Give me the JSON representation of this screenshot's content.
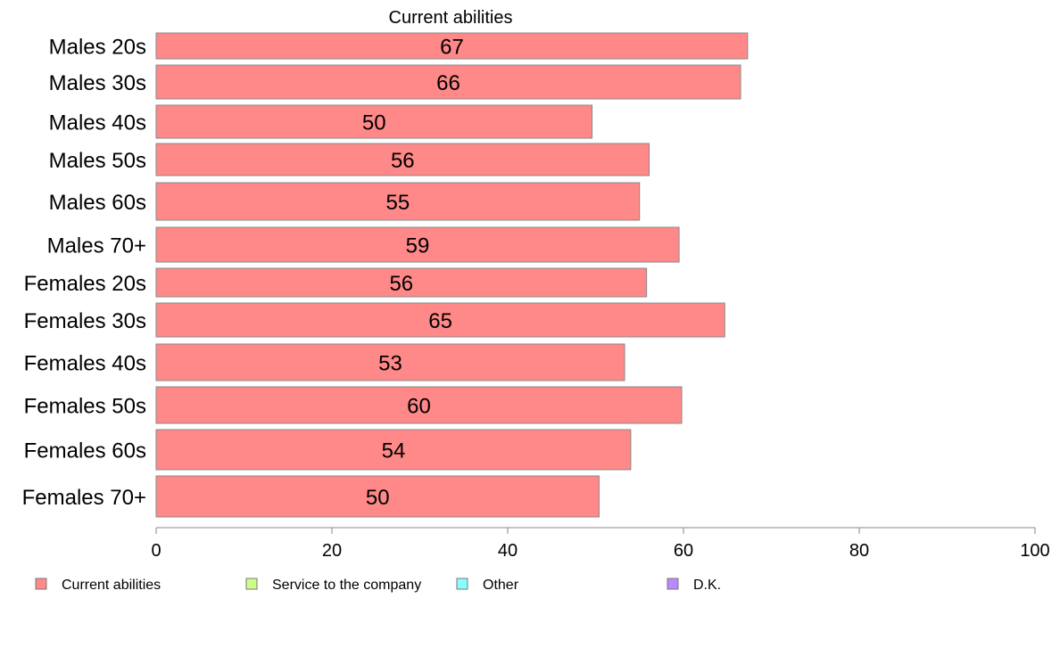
{
  "chart_data": {
    "type": "bar",
    "orientation": "horizontal",
    "title": "Current abilities",
    "categories": [
      "Males 20s",
      "Males 30s",
      "Males 40s",
      "Males 50s",
      "Males 60s",
      "Males 70+",
      "Females 20s",
      "Females 30s",
      "Females 40s",
      "Females 50s",
      "Females 60s",
      "Females 70+"
    ],
    "series": [
      {
        "name": "Current abilities",
        "values": [
          67.3,
          66.5,
          49.6,
          56.1,
          55.0,
          59.5,
          55.8,
          64.7,
          53.3,
          59.8,
          54.0,
          50.4
        ],
        "labels": [
          "67",
          "66",
          "50",
          "56",
          "55",
          "59",
          "56",
          "65",
          "53",
          "60",
          "54",
          "50"
        ]
      }
    ],
    "xlim": [
      0,
      100
    ],
    "xticks": [
      "0",
      "20",
      "40",
      "60",
      "80",
      "100"
    ],
    "legend": {
      "placement": "bottom",
      "entries": [
        {
          "label": "Current abilities",
          "color": "#ff8888"
        },
        {
          "label": "Service to the company",
          "color": "#ccff88"
        },
        {
          "label": "Other",
          "color": "#88ffff"
        },
        {
          "label": "D.K.",
          "color": "#bb88ff"
        }
      ]
    },
    "colors": {
      "bar": "#ff8888",
      "bar_stroke": "#888888",
      "axis": "#888888"
    },
    "grid": false
  }
}
